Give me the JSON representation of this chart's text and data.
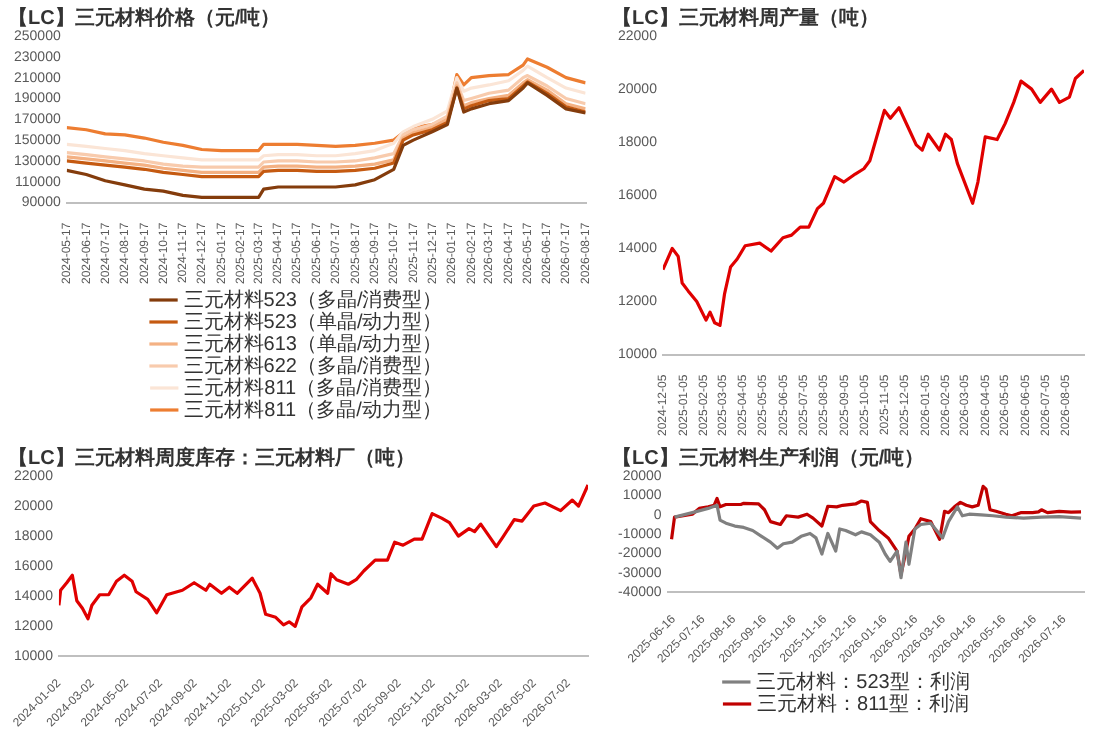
{
  "chart_data": [
    {
      "type": "line",
      "title": "【LC】三元材料价格（元/吨）",
      "marker": "none",
      "legend": "bottom",
      "x": [
        "2024-05-17",
        "2024-06-17",
        "2024-07-17",
        "2024-08-17",
        "2024-09-17",
        "2024-10-17",
        "2024-11-17",
        "2024-12-17",
        "2025-01-17",
        "2025-02-17",
        "2025-03-17",
        "2025-03-25",
        "2025-04-17",
        "2025-05-17",
        "2025-06-17",
        "2025-07-17",
        "2025-08-17",
        "2025-09-17",
        "2025-10-17",
        "2025-11-01",
        "2025-11-17",
        "2025-12-17",
        "2026-01-10",
        "2026-01-25",
        "2026-02-05",
        "2026-02-17",
        "2026-03-17",
        "2026-04-17",
        "2026-05-10",
        "2026-05-17",
        "2026-06-17",
        "2026-07-17",
        "2026-08-17"
      ],
      "xlim": [
        "2024-05-17",
        "2026-08-17"
      ],
      "xticks": [
        "2024-05-17",
        "2024-06-17",
        "2024-07-17",
        "2024-08-17",
        "2024-09-17",
        "2024-10-17",
        "2024-11-17",
        "2024-12-17",
        "2025-01-17",
        "2025-02-17",
        "2025-03-17",
        "2025-04-17",
        "2025-05-17",
        "2025-06-17",
        "2025-07-17",
        "2025-08-17",
        "2025-09-17",
        "2025-10-17",
        "2025-11-17",
        "2025-12-17",
        "2026-01-17",
        "2026-02-17",
        "2026-03-17",
        "2026-04-17",
        "2026-05-17",
        "2026-06-17",
        "2026-07-17",
        "2026-08-17"
      ],
      "ylim": [
        90000,
        250000
      ],
      "yticks": [
        90000,
        110000,
        130000,
        150000,
        170000,
        190000,
        210000,
        230000,
        250000
      ],
      "series": [
        {
          "name": "三元材料523（多晶/消费型）",
          "color": "#843c0c",
          "values": [
            121000,
            117000,
            111000,
            107000,
            103000,
            101000,
            97000,
            95000,
            95000,
            95000,
            95000,
            103000,
            105000,
            105000,
            105000,
            105000,
            107000,
            112000,
            122000,
            145000,
            150000,
            158000,
            165000,
            200000,
            177000,
            180000,
            185000,
            188000,
            200000,
            205000,
            193000,
            180000,
            176000
          ]
        },
        {
          "name": "三元材料523（单晶/动力型）",
          "color": "#c55a11",
          "values": [
            130000,
            128000,
            126000,
            124000,
            122000,
            119000,
            117000,
            115000,
            115000,
            115000,
            115000,
            120000,
            121000,
            121000,
            120000,
            120000,
            121000,
            123000,
            128000,
            150000,
            155000,
            160000,
            167000,
            200000,
            180000,
            183000,
            188000,
            190000,
            202000,
            206000,
            195000,
            182000,
            177000
          ]
        },
        {
          "name": "三元材料613（单晶/动力型）",
          "color": "#f4b183",
          "values": [
            134000,
            132000,
            130000,
            128000,
            126000,
            123000,
            121000,
            119000,
            119000,
            119000,
            119000,
            124000,
            125000,
            125000,
            124000,
            124000,
            125000,
            127000,
            131000,
            152000,
            157000,
            162000,
            170000,
            202000,
            183000,
            186000,
            190000,
            193000,
            205000,
            208000,
            198000,
            185000,
            180000
          ]
        },
        {
          "name": "三元材料622（多晶/消费型）",
          "color": "#f8cbad",
          "values": [
            138000,
            136000,
            134000,
            132000,
            130000,
            127000,
            125000,
            124000,
            124000,
            124000,
            124000,
            129000,
            130000,
            130000,
            129000,
            129000,
            130000,
            133000,
            137000,
            155000,
            160000,
            165000,
            173000,
            205000,
            188000,
            190000,
            195000,
            198000,
            210000,
            212000,
            202000,
            190000,
            185000
          ]
        },
        {
          "name": "三元材料811（多晶/消费型）",
          "color": "#fbe5d6",
          "values": [
            146000,
            144000,
            142000,
            140000,
            137000,
            135000,
            133000,
            131000,
            131000,
            131000,
            131000,
            135000,
            136000,
            136000,
            135000,
            135000,
            137000,
            140000,
            147000,
            158000,
            163000,
            170000,
            178000,
            210000,
            197000,
            200000,
            203000,
            207000,
            217000,
            221000,
            210000,
            200000,
            195000
          ]
        },
        {
          "name": "三元材料811（多晶/动力型）",
          "color": "#ed7d31",
          "values": [
            162000,
            160000,
            156000,
            155000,
            152000,
            148000,
            145000,
            141000,
            140000,
            140000,
            140000,
            146000,
            146000,
            146000,
            145000,
            144000,
            145000,
            147000,
            150000,
            157000,
            162000,
            165000,
            170000,
            213000,
            203000,
            210000,
            212000,
            213000,
            222000,
            228000,
            220000,
            210000,
            205000
          ]
        }
      ]
    },
    {
      "type": "line",
      "title": "【LC】三元材料周产量（吨）",
      "marker": "none",
      "x": [
        "2024-12-05",
        "2024-12-19",
        "2024-12-28",
        "2025-01-03",
        "2025-01-12",
        "2025-01-25",
        "2025-02-08",
        "2025-02-14",
        "2025-02-21",
        "2025-03-01",
        "2025-03-08",
        "2025-03-17",
        "2025-03-27",
        "2025-04-08",
        "2025-04-30",
        "2025-05-17",
        "2025-06-04",
        "2025-06-17",
        "2025-06-30",
        "2025-07-13",
        "2025-07-26",
        "2025-08-04",
        "2025-08-21",
        "2025-09-04",
        "2025-09-21",
        "2025-10-04",
        "2025-10-13",
        "2025-11-04",
        "2025-11-13",
        "2025-11-26",
        "2025-12-09",
        "2025-12-22",
        "2025-12-31",
        "2026-01-09",
        "2026-01-26",
        "2026-02-04",
        "2026-02-13",
        "2026-02-22",
        "2026-03-17",
        "2026-03-25",
        "2026-04-05",
        "2026-04-23",
        "2026-05-05",
        "2026-05-18",
        "2026-05-29",
        "2026-06-14",
        "2026-06-27",
        "2026-07-14",
        "2026-07-26",
        "2026-08-10",
        "2026-08-19",
        "2026-09-01"
      ],
      "xlim": [
        "2024-12-05",
        "2026-09-01"
      ],
      "xticks": [
        "2024-12-05",
        "2025-01-05",
        "2025-02-05",
        "2025-03-05",
        "2025-04-05",
        "2025-05-05",
        "2025-06-05",
        "2025-07-05",
        "2025-08-05",
        "2025-09-05",
        "2025-10-05",
        "2025-11-05",
        "2025-12-05",
        "2026-01-05",
        "2026-02-05",
        "2026-03-05",
        "2026-04-05",
        "2026-05-05",
        "2026-06-05",
        "2026-07-05",
        "2026-08-05"
      ],
      "ylim": [
        10000,
        22000
      ],
      "yticks": [
        10000,
        12000,
        14000,
        16000,
        18000,
        20000,
        22000
      ],
      "series": [
        {
          "color": "#e00000",
          "values": [
            13200,
            14000,
            13700,
            12700,
            12400,
            12000,
            11300,
            11600,
            11200,
            11100,
            12300,
            13300,
            13600,
            14100,
            14200,
            13900,
            14400,
            14500,
            14800,
            14800,
            15500,
            15700,
            16700,
            16500,
            16800,
            17000,
            17300,
            19200,
            18900,
            19300,
            18600,
            17900,
            17700,
            18300,
            17700,
            18300,
            18100,
            17200,
            15700,
            16500,
            18200,
            18100,
            18700,
            19500,
            20300,
            20000,
            19500,
            20000,
            19500,
            19700,
            20400,
            20700
          ]
        }
      ]
    },
    {
      "type": "line",
      "title": "【LC】三元材料周度库存：三元材料厂（吨）",
      "marker": "none",
      "x": [
        "2024-01-02",
        "2024-01-05",
        "2024-01-16",
        "2024-01-26",
        "2024-02-03",
        "2024-02-13",
        "2024-02-23",
        "2024-03-01",
        "2024-03-15",
        "2024-03-31",
        "2024-04-14",
        "2024-04-28",
        "2024-05-12",
        "2024-05-19",
        "2024-06-09",
        "2024-06-25",
        "2024-07-13",
        "2024-08-10",
        "2024-08-31",
        "2024-09-21",
        "2024-09-28",
        "2024-10-19",
        "2024-11-02",
        "2024-11-16",
        "2024-12-13",
        "2024-12-27",
        "2025-01-06",
        "2025-01-24",
        "2025-02-07",
        "2025-02-17",
        "2025-02-28",
        "2025-03-12",
        "2025-03-28",
        "2025-04-09",
        "2025-04-27",
        "2025-05-03",
        "2025-05-13",
        "2025-06-03",
        "2025-06-17",
        "2025-07-01",
        "2025-07-21",
        "2025-08-12",
        "2025-08-25",
        "2025-09-09",
        "2025-09-29",
        "2025-10-13",
        "2025-10-31",
        "2025-11-17",
        "2025-12-01",
        "2025-12-17",
        "2026-01-05",
        "2026-01-15",
        "2026-01-26",
        "2026-02-23",
        "2026-03-06",
        "2026-03-27",
        "2026-04-10",
        "2026-05-01",
        "2026-05-21",
        "2026-06-18",
        "2026-07-09",
        "2026-07-20",
        "2026-08-06"
      ],
      "xlim": [
        "2024-01-02",
        "2026-08-06"
      ],
      "xticks": [
        "2024-01-02",
        "2024-03-02",
        "2024-05-02",
        "2024-07-02",
        "2024-09-02",
        "2024-11-02",
        "2025-01-02",
        "2025-03-02",
        "2025-05-02",
        "2025-07-02",
        "2025-09-02",
        "2025-11-02",
        "2026-01-02",
        "2026-03-02",
        "2026-05-02",
        "2026-07-02"
      ],
      "ylim": [
        10000,
        22000
      ],
      "yticks": [
        10000,
        12000,
        14000,
        16000,
        18000,
        20000,
        22000
      ],
      "series": [
        {
          "color": "#e00000",
          "values": [
            13400,
            14400,
            14900,
            15400,
            13700,
            13200,
            12500,
            13400,
            14100,
            14100,
            15000,
            15400,
            15000,
            14300,
            13800,
            12900,
            14100,
            14400,
            14900,
            14400,
            14800,
            14200,
            14600,
            14200,
            15200,
            14200,
            12800,
            12600,
            12100,
            12300,
            12000,
            13300,
            13900,
            14800,
            14200,
            15500,
            15100,
            14800,
            15100,
            15700,
            16400,
            16400,
            17600,
            17400,
            17800,
            17800,
            19500,
            19200,
            18900,
            18000,
            18500,
            18300,
            18800,
            17300,
            17900,
            19100,
            19000,
            20000,
            20200,
            19700,
            20400,
            20000,
            21400
          ]
        }
      ]
    },
    {
      "type": "line",
      "title": "【LC】三元材料生产利润（元/吨）",
      "marker": "none",
      "legend": "bottom",
      "xlim": [
        "2025-06-10",
        "2026-08-05"
      ],
      "xticks": [
        "2025-06-16",
        "2025-07-16",
        "2025-08-16",
        "2025-09-16",
        "2025-10-16",
        "2025-11-16",
        "2025-12-16",
        "2026-01-16",
        "2026-02-16",
        "2026-03-16",
        "2026-04-16",
        "2026-05-16",
        "2026-06-16",
        "2026-07-16"
      ],
      "ylim": [
        -40000,
        20000
      ],
      "yticks": [
        -40000,
        -30000,
        -20000,
        -10000,
        0,
        10000,
        20000
      ],
      "series": [
        {
          "name": "三元材料：523型：利润",
          "color": "#808080",
          "x": [
            "2025-06-17",
            "2025-07-05",
            "2025-07-21",
            "2025-07-30",
            "2025-08-02",
            "2025-08-08",
            "2025-08-17",
            "2025-08-26",
            "2025-09-04",
            "2025-09-13",
            "2025-09-22",
            "2025-09-29",
            "2025-10-05",
            "2025-10-14",
            "2025-10-23",
            "2025-11-01",
            "2025-11-07",
            "2025-11-13",
            "2025-11-19",
            "2025-11-27",
            "2025-12-01",
            "2025-12-07",
            "2025-12-17",
            "2025-12-23",
            "2026-01-01",
            "2026-01-10",
            "2026-01-16",
            "2026-01-21",
            "2026-01-28",
            "2026-02-01",
            "2026-02-06",
            "2026-02-09",
            "2026-02-15",
            "2026-02-21",
            "2026-03-03",
            "2026-03-09",
            "2026-03-15",
            "2026-03-21",
            "2026-03-30",
            "2026-04-04",
            "2026-04-11",
            "2026-04-23",
            "2026-05-05",
            "2026-05-18",
            "2026-06-05",
            "2026-06-23",
            "2026-07-11",
            "2026-08-02"
          ],
          "values": [
            -1200,
            1100,
            3300,
            4900,
            -2700,
            -4300,
            -5800,
            -6500,
            -8100,
            -11100,
            -14100,
            -17200,
            -14900,
            -14100,
            -11100,
            -9600,
            -11900,
            -20200,
            -9600,
            -18700,
            -7300,
            -8100,
            -10300,
            -8800,
            -10300,
            -14100,
            -20200,
            -24000,
            -18700,
            -32400,
            -14100,
            -25500,
            -7300,
            -5000,
            -4300,
            -8100,
            -11900,
            -3500,
            4100,
            -500,
            300,
            0,
            -500,
            -1200,
            -1700,
            -1200,
            -900,
            -1700
          ]
        },
        {
          "name": "三元材料：811型：利润",
          "color": "#c00000",
          "x": [
            "2025-06-14",
            "2025-06-17",
            "2025-06-26",
            "2025-07-05",
            "2025-07-12",
            "2025-07-21",
            "2025-07-27",
            "2025-07-30",
            "2025-08-02",
            "2025-08-08",
            "2025-08-23",
            "2025-08-26",
            "2025-09-10",
            "2025-09-16",
            "2025-09-22",
            "2025-10-02",
            "2025-10-08",
            "2025-10-20",
            "2025-10-29",
            "2025-11-04",
            "2025-11-13",
            "2025-11-19",
            "2025-11-28",
            "2025-12-04",
            "2025-12-17",
            "2025-12-23",
            "2025-12-29",
            "2026-01-01",
            "2026-01-10",
            "2026-01-19",
            "2026-01-28",
            "2026-02-01",
            "2026-02-06",
            "2026-02-09",
            "2026-02-15",
            "2026-02-21",
            "2026-03-03",
            "2026-03-12",
            "2026-03-17",
            "2026-03-21",
            "2026-03-27",
            "2026-04-02",
            "2026-04-08",
            "2026-04-14",
            "2026-04-20",
            "2026-04-25",
            "2026-04-28",
            "2026-05-02",
            "2026-05-08",
            "2026-05-18",
            "2026-05-24",
            "2026-06-02",
            "2026-06-14",
            "2026-06-20",
            "2026-06-23",
            "2026-06-29",
            "2026-07-11",
            "2026-07-23",
            "2026-08-02"
          ],
          "values": [
            -12600,
            -1200,
            -500,
            300,
            3300,
            4100,
            4900,
            8400,
            4100,
            5300,
            5300,
            5900,
            5600,
            2600,
            -3500,
            -5000,
            -500,
            -1200,
            300,
            -1700,
            -5800,
            4400,
            4100,
            4900,
            5600,
            7100,
            6400,
            -3500,
            -8100,
            -11900,
            -18700,
            -30900,
            -18700,
            -11100,
            -7300,
            -2000,
            -3500,
            -12600,
            1800,
            1100,
            4100,
            6400,
            4900,
            4100,
            4900,
            14700,
            13200,
            2600,
            1800,
            300,
            -500,
            1100,
            1100,
            1500,
            2600,
            1100,
            1800,
            1400,
            1500
          ]
        }
      ]
    }
  ]
}
